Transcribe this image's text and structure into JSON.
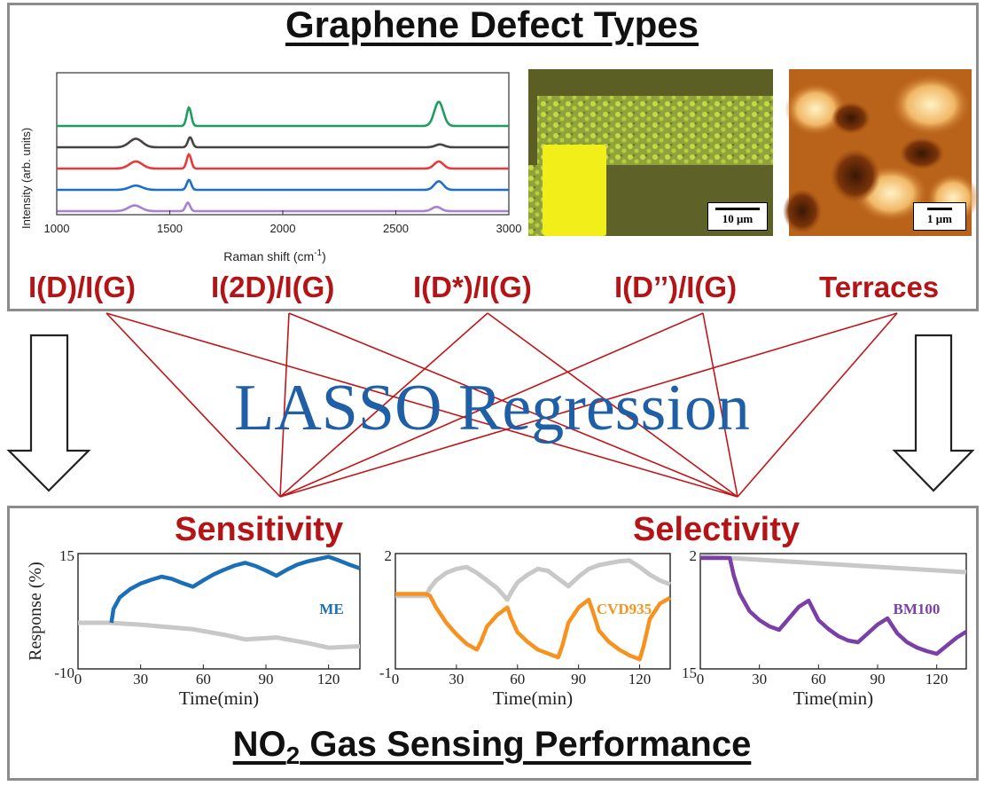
{
  "top_panel": {
    "title": "Graphene Defect Types",
    "features": [
      "I(D)/I(G)",
      "I(2D)/I(G)",
      "I(D*)/I(G)",
      "I(D’’)/I(G)",
      "Terraces"
    ]
  },
  "raman_chart": {
    "ylabel": "Intensity (arb. units)",
    "xlabel_main": "Raman shift (cm",
    "xlabel_sup": "-1",
    "xlabel_close": ")",
    "x_ticks": [
      "1000",
      "1500",
      "2000",
      "2500",
      "3000"
    ]
  },
  "optical_image": {
    "scale_label": "10 μm"
  },
  "afm_image": {
    "scale_label": "1 μm"
  },
  "center": {
    "label": "LASSO Regression"
  },
  "bottom_panel": {
    "title_prefix": "NO",
    "title_sub": "2",
    "title_suffix": " Gas Sensing Performance",
    "sensitivity": "Sensitivity",
    "selectivity": "Selectivity",
    "ylabel": "Response (%)",
    "xlabel": "Time(min)"
  },
  "colors": {
    "red": "#b51416",
    "blue_text": "#1f5fa5",
    "green": "#1e9e5e",
    "dark": "#444444",
    "raman_red": "#e8393b",
    "raman_blue": "#1c6fd0",
    "purple": "#a97fd6",
    "me_blue": "#1a6fb8",
    "orange": "#f7921e",
    "violet": "#7b3fa8",
    "gray": "#c8c8c8"
  },
  "chart_data": [
    {
      "type": "line",
      "title": "",
      "xlabel": "Raman shift (cm-1)",
      "ylabel": "Intensity (arb. units)",
      "xlim": [
        1000,
        3000
      ],
      "x_ticks": [
        1000,
        1500,
        2000,
        2500,
        3000
      ],
      "series": [
        {
          "color": "#1e9e5e",
          "offset": 4,
          "peaks": [
            {
              "x": 1350,
              "h": 0.0
            },
            {
              "x": 1585,
              "h": 1.3
            },
            {
              "x": 2690,
              "h": 1.7
            }
          ]
        },
        {
          "color": "#444444",
          "offset": 3,
          "peaks": [
            {
              "x": 1350,
              "h": 0.6
            },
            {
              "x": 1590,
              "h": 0.7
            },
            {
              "x": 2695,
              "h": 0.2
            }
          ]
        },
        {
          "color": "#e8393b",
          "offset": 2,
          "peaks": [
            {
              "x": 1350,
              "h": 0.5
            },
            {
              "x": 1585,
              "h": 1.0
            },
            {
              "x": 2690,
              "h": 0.5
            }
          ]
        },
        {
          "color": "#1c6fd0",
          "offset": 1,
          "peaks": [
            {
              "x": 1350,
              "h": 0.3
            },
            {
              "x": 1585,
              "h": 0.7
            },
            {
              "x": 2690,
              "h": 0.6
            }
          ]
        },
        {
          "color": "#a97fd6",
          "offset": 0,
          "peaks": [
            {
              "x": 1345,
              "h": 0.4
            },
            {
              "x": 1580,
              "h": 0.6
            },
            {
              "x": 2680,
              "h": 0.3
            }
          ]
        }
      ]
    },
    {
      "type": "line",
      "title": "",
      "xlabel": "Time(min)",
      "ylabel": "Response (%)",
      "xlim": [
        0,
        135
      ],
      "ylim": [
        -10,
        15
      ],
      "x_ticks": [
        0,
        30,
        60,
        90,
        120
      ],
      "y_ticks_shown": [
        "15",
        "-10"
      ],
      "series": [
        {
          "name": "ME",
          "color": "#1a6fb8",
          "x": [
            16,
            17,
            20,
            25,
            30,
            35,
            40,
            45,
            50,
            55,
            60,
            65,
            70,
            75,
            80,
            85,
            90,
            95,
            100,
            105,
            110,
            115,
            120,
            125,
            130,
            135
          ],
          "y": [
            0,
            3,
            5.5,
            7.3,
            8.5,
            9.3,
            10,
            9.5,
            8.6,
            7.8,
            9.2,
            10.5,
            11.5,
            12.4,
            13,
            12.3,
            11.3,
            10.2,
            11.5,
            12.6,
            13.3,
            13.8,
            14.3,
            13.5,
            12.6,
            11.8
          ]
        },
        {
          "color": "#c8c8c8",
          "x": [
            0,
            15,
            30,
            40,
            55,
            70,
            80,
            95,
            110,
            120,
            135
          ],
          "y": [
            0,
            0,
            -0.4,
            -0.8,
            -1.4,
            -2.6,
            -3.6,
            -3.2,
            -4.4,
            -5.4,
            -5.1
          ]
        }
      ]
    },
    {
      "type": "line",
      "title": "",
      "xlabel": "Time(min)",
      "ylabel": "",
      "xlim": [
        0,
        135
      ],
      "ylim": [
        -1,
        2
      ],
      "x_ticks": [
        0,
        30,
        60,
        90,
        120
      ],
      "y_ticks_shown": [
        "2",
        "-1"
      ],
      "series": [
        {
          "name": "CVD935",
          "color": "#f7921e",
          "x": [
            0,
            15,
            17,
            20,
            25,
            30,
            35,
            40,
            42,
            45,
            50,
            55,
            57,
            60,
            65,
            70,
            75,
            80,
            82,
            85,
            90,
            95,
            97,
            100,
            105,
            110,
            115,
            120,
            122,
            125,
            130,
            135
          ],
          "y": [
            0.95,
            0.95,
            0.9,
            0.6,
            0.2,
            -0.1,
            -0.35,
            -0.5,
            -0.3,
            0.1,
            0.4,
            0.6,
            0.3,
            -0.05,
            -0.3,
            -0.5,
            -0.6,
            -0.7,
            -0.4,
            0.2,
            0.6,
            0.8,
            0.5,
            0.0,
            -0.3,
            -0.5,
            -0.65,
            -0.75,
            -0.4,
            0.3,
            0.7,
            0.85
          ]
        },
        {
          "color": "#c8c8c8",
          "x": [
            0,
            15,
            17,
            20,
            25,
            30,
            35,
            40,
            45,
            50,
            55,
            57,
            60,
            65,
            70,
            75,
            80,
            85,
            90,
            95,
            100,
            105,
            110,
            115,
            120,
            125,
            130,
            135
          ],
          "y": [
            0.9,
            0.9,
            1.1,
            1.3,
            1.5,
            1.6,
            1.65,
            1.5,
            1.3,
            1.1,
            0.8,
            1.0,
            1.25,
            1.45,
            1.6,
            1.55,
            1.35,
            1.15,
            1.4,
            1.6,
            1.7,
            1.75,
            1.8,
            1.82,
            1.65,
            1.45,
            1.3,
            1.2
          ]
        }
      ]
    },
    {
      "type": "line",
      "title": "",
      "xlabel": "Time(min)",
      "ylabel": "",
      "xlim": [
        0,
        135
      ],
      "ylim": [
        15,
        2
      ],
      "x_ticks": [
        0,
        30,
        60,
        90,
        120
      ],
      "y_ticks_shown": [
        "2",
        "15"
      ],
      "series": [
        {
          "name": "BM100",
          "color": "#7b3fa8",
          "x": [
            0,
            15,
            17,
            20,
            25,
            30,
            35,
            40,
            45,
            50,
            55,
            57,
            60,
            65,
            70,
            75,
            80,
            85,
            90,
            95,
            97,
            100,
            105,
            110,
            115,
            120,
            125,
            130,
            135
          ],
          "y": [
            2.5,
            2.5,
            4.5,
            6.5,
            8.5,
            9.5,
            10.2,
            10.6,
            9.3,
            8.0,
            7.3,
            8.2,
            9.5,
            10.5,
            11.3,
            11.8,
            12.0,
            11.0,
            10.0,
            9.3,
            10.0,
            11.0,
            12.0,
            12.6,
            13.0,
            13.3,
            12.4,
            11.5,
            10.8
          ]
        },
        {
          "color": "#c8c8c8",
          "x": [
            0,
            15,
            30,
            45,
            60,
            75,
            90,
            105,
            120,
            135
          ],
          "y": [
            2.3,
            2.5,
            2.7,
            2.9,
            3.1,
            3.3,
            3.5,
            3.7,
            3.9,
            4.1
          ]
        }
      ]
    }
  ]
}
